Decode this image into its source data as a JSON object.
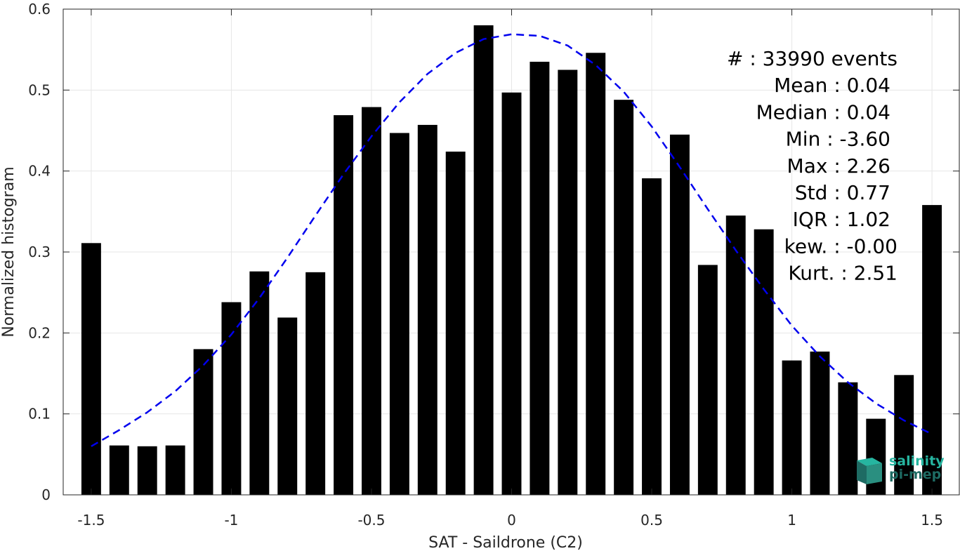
{
  "chart_data": {
    "type": "bar",
    "xlabel": "SAT - Saildrone (C2)",
    "ylabel": "Normalized histogram",
    "xlim": [
      -1.6,
      1.6
    ],
    "ylim": [
      0,
      0.6
    ],
    "grid": true,
    "xticks": [
      -1.5,
      -1,
      -0.5,
      0,
      0.5,
      1,
      1.5
    ],
    "xtick_labels": [
      "-1.5",
      "-1",
      "-0.5",
      "0",
      "0.5",
      "1",
      "1.5"
    ],
    "yticks": [
      0,
      0.1,
      0.2,
      0.3,
      0.4,
      0.5,
      0.6
    ],
    "ytick_labels": [
      "0",
      "0.1",
      "0.2",
      "0.3",
      "0.4",
      "0.5",
      "0.6"
    ],
    "bar_color": "#000000",
    "bar_width": 0.07,
    "bars": {
      "x": [
        -1.5,
        -1.4,
        -1.3,
        -1.2,
        -1.1,
        -1.0,
        -0.9,
        -0.8,
        -0.7,
        -0.6,
        -0.5,
        -0.4,
        -0.3,
        -0.2,
        -0.1,
        0.0,
        0.1,
        0.2,
        0.3,
        0.4,
        0.5,
        0.6,
        0.7,
        0.8,
        0.9,
        1.0,
        1.1,
        1.2,
        1.3,
        1.4,
        1.5
      ],
      "values": [
        0.311,
        0.061,
        0.06,
        0.061,
        0.18,
        0.238,
        0.276,
        0.219,
        0.275,
        0.469,
        0.479,
        0.447,
        0.457,
        0.424,
        0.58,
        0.497,
        0.535,
        0.525,
        0.546,
        0.488,
        0.391,
        0.445,
        0.284,
        0.345,
        0.328,
        0.166,
        0.177,
        0.139,
        0.094,
        0.148,
        0.358
      ]
    },
    "fit_curve": {
      "style": "dashed",
      "color": "#0000ee",
      "x": [
        -1.5,
        -1.4,
        -1.3,
        -1.2,
        -1.1,
        -1.0,
        -0.9,
        -0.8,
        -0.7,
        -0.6,
        -0.5,
        -0.4,
        -0.3,
        -0.2,
        -0.1,
        0.0,
        0.1,
        0.2,
        0.3,
        0.4,
        0.5,
        0.6,
        0.7,
        0.8,
        0.9,
        1.0,
        1.1,
        1.2,
        1.3,
        1.4,
        1.5
      ],
      "values": [
        0.06,
        0.08,
        0.102,
        0.128,
        0.16,
        0.198,
        0.243,
        0.293,
        0.345,
        0.396,
        0.443,
        0.485,
        0.52,
        0.546,
        0.563,
        0.569,
        0.567,
        0.555,
        0.531,
        0.498,
        0.455,
        0.405,
        0.353,
        0.302,
        0.254,
        0.209,
        0.171,
        0.139,
        0.113,
        0.092,
        0.075
      ]
    },
    "annotations": [
      "#  : 33990 events",
      "Mean : 0.04",
      "Median : 0.04",
      "Min : -3.60",
      "Max : 2.26",
      "Std : 0.77",
      "IQR : 1.02",
      "kew. : -0.00",
      "Kurt. : 2.51"
    ],
    "annotations_position": "top-right"
  },
  "logo": {
    "line1": "salinity",
    "line2": "pi-mep",
    "colors": [
      "#26b5a0",
      "#1e6b63",
      "#2a8f80"
    ]
  }
}
